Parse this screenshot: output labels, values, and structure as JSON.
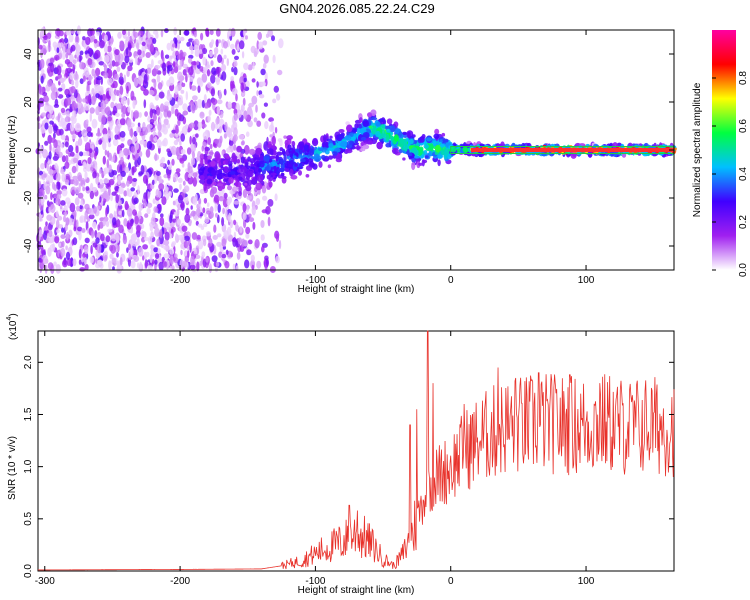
{
  "title": "GN04.2026.085.22.24.C29",
  "colors": {
    "snr_line": "#e8312a"
  },
  "chart_data": [
    {
      "type": "heatmap",
      "xlabel": "Height of straight line (km)",
      "ylabel": "Frequency (Hz)",
      "xlim": [
        -305,
        165
      ],
      "ylim": [
        -50,
        50
      ],
      "xticks": [
        -300,
        -200,
        -100,
        0,
        100
      ],
      "yticks": [
        -40,
        -20,
        0,
        20,
        40
      ],
      "colorbar": {
        "label": "Normalized spectral amplitude",
        "range": [
          0.0,
          1.0
        ],
        "ticks": [
          0.0,
          0.2,
          0.4,
          0.6,
          0.8
        ],
        "tick_labels": [
          "0.0",
          "0.2",
          "0.4",
          "0.6",
          "0.8"
        ],
        "colormap": [
          "#ffffff",
          "#a020f0",
          "#4000ff",
          "#00c0ff",
          "#00ff40",
          "#ffff00",
          "#ff0000",
          "#ff00a0"
        ]
      },
      "ridge": {
        "x": [
          -180,
          -150,
          -130,
          -110,
          -90,
          -75,
          -65,
          -55,
          -45,
          -35,
          -25,
          -15,
          -5,
          5,
          20,
          40,
          80,
          120,
          165
        ],
        "y": [
          -10,
          -8,
          -6,
          -3,
          0,
          4,
          8,
          9,
          6,
          3,
          0,
          1,
          0,
          0.5,
          0,
          0,
          0,
          0,
          0
        ]
      }
    },
    {
      "type": "line",
      "xlabel": "Height of straight line (km)",
      "ylabel": "SNR (10 * v/v)",
      "multiplier": "(x10",
      "multiplier_exp": "4",
      "xlim": [
        -305,
        165
      ],
      "ylim": [
        0.0,
        2.3
      ],
      "xticks": [
        -300,
        -200,
        -100,
        0,
        100
      ],
      "yticks": [
        0.0,
        0.5,
        1.0,
        1.5,
        2.0
      ],
      "ytick_labels": [
        "0.0",
        "0.5",
        "1.0",
        "1.5",
        "2.0"
      ],
      "envelope": {
        "x": [
          -305,
          -200,
          -140,
          -125,
          -110,
          -95,
          -80,
          -72,
          -65,
          -58,
          -50,
          -42,
          -36,
          -30,
          -25,
          -20,
          -15,
          -10,
          0,
          10,
          20,
          30,
          40,
          55,
          70,
          85,
          100,
          115,
          130,
          145,
          165
        ],
        "y": [
          0.01,
          0.015,
          0.02,
          0.05,
          0.1,
          0.2,
          0.28,
          0.35,
          0.33,
          0.25,
          0.12,
          0.05,
          0.15,
          0.3,
          0.5,
          0.7,
          0.85,
          0.9,
          1.0,
          1.15,
          1.25,
          1.32,
          1.38,
          1.4,
          1.42,
          1.4,
          1.4,
          1.42,
          1.38,
          1.4,
          1.38
        ]
      },
      "peaks": [
        {
          "x": -75,
          "y": 0.63
        },
        {
          "x": -69,
          "y": 0.58
        },
        {
          "x": -30,
          "y": 1.4
        },
        {
          "x": -25,
          "y": 1.55
        },
        {
          "x": -17,
          "y": 2.32
        },
        {
          "x": -13,
          "y": 1.8
        },
        {
          "x": 10,
          "y": 1.6
        },
        {
          "x": 35,
          "y": 1.95
        },
        {
          "x": 48,
          "y": 1.85
        },
        {
          "x": 65,
          "y": 1.9
        },
        {
          "x": 88,
          "y": 1.88
        },
        {
          "x": 110,
          "y": 1.8
        }
      ]
    }
  ]
}
